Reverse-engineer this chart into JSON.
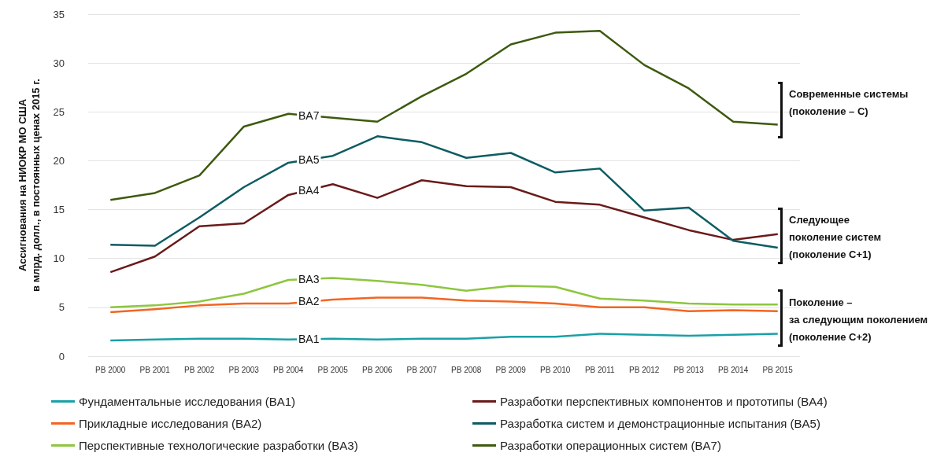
{
  "chart_data": {
    "type": "line",
    "ylabel": "Ассигнования на НИОКР МО США\nв млрд. долл., в постоянных ценах 2015 г.",
    "categories": [
      "PB 2000",
      "PB 2001",
      "PB 2002",
      "PB 2003",
      "PB 2004",
      "PB 2005",
      "PB 2006",
      "PB 2007",
      "PB 2008",
      "PB 2009",
      "PB 2010",
      "PB 2011",
      "PB 2012",
      "PB 2013",
      "PB 2014",
      "PB 2015"
    ],
    "series": [
      {
        "name": "Фундаментальные исследования (BA1)",
        "color": "#1aa0a8",
        "values": [
          1.6,
          1.7,
          1.8,
          1.8,
          1.7,
          1.8,
          1.7,
          1.8,
          1.8,
          2.0,
          2.0,
          2.3,
          2.2,
          2.1,
          2.2,
          2.3
        ]
      },
      {
        "name": "Прикладные исследования (BA2)",
        "color": "#f26522",
        "values": [
          4.5,
          4.8,
          5.2,
          5.4,
          5.4,
          5.8,
          6.0,
          6.0,
          5.7,
          5.6,
          5.4,
          5.0,
          5.0,
          4.6,
          4.7,
          4.6
        ]
      },
      {
        "name": "Перспективные технологические разработки (BA3)",
        "color": "#8dc63f",
        "values": [
          5.0,
          5.2,
          5.6,
          6.4,
          7.8,
          8.0,
          7.7,
          7.3,
          6.7,
          7.2,
          7.1,
          5.9,
          5.7,
          5.4,
          5.3,
          5.3
        ]
      },
      {
        "name": "Разработки перспективных компонентов и прототипы (BA4)",
        "color": "#6b1a1a",
        "values": [
          8.6,
          10.2,
          13.3,
          13.6,
          16.5,
          17.6,
          16.2,
          18.0,
          17.4,
          17.3,
          15.8,
          15.5,
          14.2,
          12.9,
          11.9,
          12.5
        ]
      },
      {
        "name": "Разработка систем и демонстрационные испытания (BA5)",
        "color": "#0d5c63",
        "values": [
          11.4,
          11.3,
          14.2,
          17.3,
          19.8,
          20.5,
          22.5,
          21.9,
          20.3,
          20.8,
          18.8,
          19.2,
          14.9,
          15.2,
          11.8,
          11.1
        ]
      },
      {
        "name": "Разработки операционных систем (BA7)",
        "color": "#3d5a0f",
        "values": [
          16.0,
          16.7,
          18.5,
          23.5,
          24.8,
          24.4,
          24.0,
          26.6,
          28.9,
          31.9,
          33.1,
          33.3,
          29.8,
          27.4,
          24.0,
          23.7
        ]
      }
    ],
    "ylim": [
      0,
      35
    ],
    "yticks": [
      0,
      5,
      10,
      15,
      20,
      25,
      30,
      35
    ],
    "grid": "y",
    "legend": "bottom",
    "marker": "none",
    "line_style": "solid",
    "annotations": [
      {
        "text": "BA1",
        "x": "PB 2004",
        "y": 1.75
      },
      {
        "text": "BA2",
        "x": "PB 2004",
        "y": 5.6
      },
      {
        "text": "BA3",
        "x": "PB 2004",
        "y": 7.9
      },
      {
        "text": "BA4",
        "x": "PB 2004",
        "y": 17.0
      },
      {
        "text": "BA5",
        "x": "PB 2004",
        "y": 20.1
      },
      {
        "text": "BA7",
        "x": "PB 2004",
        "y": 24.6
      },
      "Современные системы\n(поколение – C)",
      "Следующее\nпоколение систем\n(поколение C+1)",
      "Поколение –\nза следующим поколением\n(поколение C+2)"
    ]
  }
}
